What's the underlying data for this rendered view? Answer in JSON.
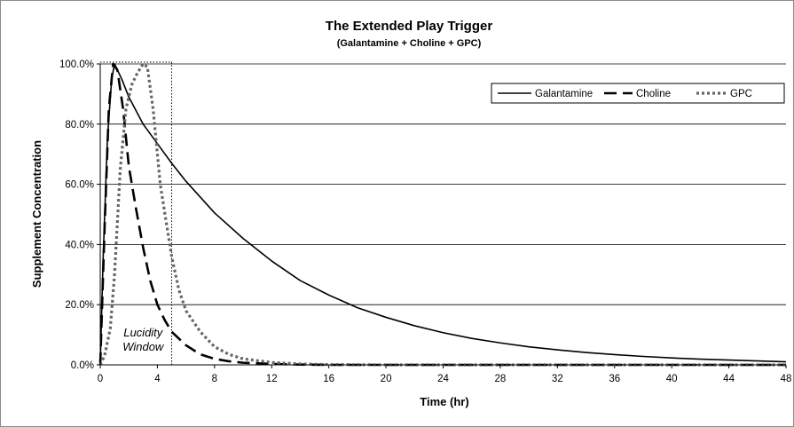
{
  "chart_data": {
    "type": "line",
    "title": "The Extended Play Trigger",
    "subtitle": "(Galantamine + Choline + GPC)",
    "xlabel": "Time (hr)",
    "ylabel": "Supplement Concentration",
    "xlim": [
      0,
      48
    ],
    "ylim": [
      0,
      1.0
    ],
    "x_ticks": [
      "0",
      "4",
      "8",
      "12",
      "16",
      "20",
      "24",
      "28",
      "32",
      "36",
      "40",
      "44",
      "48"
    ],
    "y_ticks": [
      "0.0%",
      "20.0%",
      "40.0%",
      "60.0%",
      "80.0%",
      "100.0%"
    ],
    "grid": {
      "horizontal": true,
      "vertical": false
    },
    "legend": {
      "placement": "top-right"
    },
    "annotation": {
      "lines": [
        "Lucidity",
        "Window"
      ],
      "x_range": [
        0,
        5
      ]
    },
    "series": [
      {
        "name": "Galantamine",
        "color": "#000000",
        "style": "solid",
        "points": [
          [
            0,
            0
          ],
          [
            0.2,
            0.35
          ],
          [
            0.5,
            0.75
          ],
          [
            0.8,
            0.95
          ],
          [
            1,
            1.0
          ],
          [
            1.5,
            0.95
          ],
          [
            2,
            0.89
          ],
          [
            3,
            0.8
          ],
          [
            4,
            0.735
          ],
          [
            5,
            0.67
          ],
          [
            6,
            0.61
          ],
          [
            8,
            0.505
          ],
          [
            10,
            0.42
          ],
          [
            12,
            0.345
          ],
          [
            14,
            0.28
          ],
          [
            16,
            0.232
          ],
          [
            18,
            0.19
          ],
          [
            20,
            0.158
          ],
          [
            22,
            0.13
          ],
          [
            24,
            0.107
          ],
          [
            26,
            0.088
          ],
          [
            28,
            0.073
          ],
          [
            30,
            0.06
          ],
          [
            32,
            0.05
          ],
          [
            34,
            0.041
          ],
          [
            36,
            0.034
          ],
          [
            38,
            0.028
          ],
          [
            40,
            0.023
          ],
          [
            42,
            0.019
          ],
          [
            44,
            0.016
          ],
          [
            46,
            0.013
          ],
          [
            48,
            0.01
          ]
        ]
      },
      {
        "name": "Choline",
        "color": "#000000",
        "style": "dash",
        "points": [
          [
            0,
            0
          ],
          [
            0.3,
            0.45
          ],
          [
            0.6,
            0.85
          ],
          [
            0.9,
            1.0
          ],
          [
            1.2,
            0.98
          ],
          [
            1.6,
            0.85
          ],
          [
            2,
            0.66
          ],
          [
            2.5,
            0.52
          ],
          [
            3,
            0.39
          ],
          [
            3.5,
            0.28
          ],
          [
            4,
            0.2
          ],
          [
            4.5,
            0.15
          ],
          [
            5,
            0.11
          ],
          [
            6,
            0.065
          ],
          [
            7,
            0.035
          ],
          [
            8,
            0.02
          ],
          [
            9,
            0.012
          ],
          [
            10,
            0.007
          ],
          [
            12,
            0.003
          ],
          [
            14,
            0.001
          ],
          [
            16,
            0
          ],
          [
            48,
            0
          ]
        ]
      },
      {
        "name": "GPC",
        "color": "#666666",
        "style": "dot",
        "points": [
          [
            0,
            0
          ],
          [
            0.3,
            0.03
          ],
          [
            0.7,
            0.12
          ],
          [
            1,
            0.3
          ],
          [
            1.4,
            0.65
          ],
          [
            1.8,
            0.85
          ],
          [
            2.2,
            0.93
          ],
          [
            2.6,
            0.97
          ],
          [
            3,
            1.0
          ],
          [
            3.3,
            0.99
          ],
          [
            3.7,
            0.85
          ],
          [
            4.2,
            0.6
          ],
          [
            5,
            0.36
          ],
          [
            5.5,
            0.25
          ],
          [
            6,
            0.18
          ],
          [
            7,
            0.11
          ],
          [
            8,
            0.06
          ],
          [
            9,
            0.035
          ],
          [
            10,
            0.02
          ],
          [
            12,
            0.008
          ],
          [
            14,
            0.003
          ],
          [
            16,
            0.001
          ],
          [
            20,
            0
          ],
          [
            48,
            0
          ]
        ]
      }
    ]
  }
}
